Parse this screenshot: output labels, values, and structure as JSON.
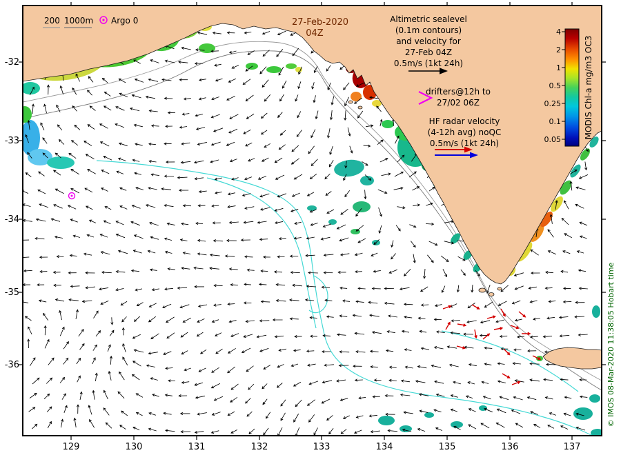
{
  "header": {
    "date_line1": "27-Feb-2020",
    "date_line2": "04Z"
  },
  "legend": {
    "isobaths": {
      "label_200": "200",
      "label_1000": "1000m"
    },
    "argo": {
      "label": "Argo 0"
    }
  },
  "annotations": {
    "altimetric": [
      "Altimetric sealevel",
      "(0.1m contours)",
      "and velocity for",
      "27-Feb 04Z",
      "0.5m/s (1kt 24h)"
    ],
    "drifters": [
      "drifters@12h to",
      "27/02 06Z"
    ],
    "hf_radar": [
      "HF radar velocity",
      "(4-12h avg) noQC",
      "0.5m/s (1kt 24h)"
    ]
  },
  "colorbar": {
    "title": "MODIS Chl-a mg/m3 OC3",
    "ticks": [
      "4",
      "2",
      "1",
      "0.5",
      "0.25",
      "0.1",
      "0.05"
    ]
  },
  "axes": {
    "x_ticks": [
      "129",
      "130",
      "131",
      "132",
      "133",
      "134",
      "135",
      "136",
      "137"
    ],
    "y_ticks": [
      "-32",
      "-33",
      "-34",
      "-35",
      "-36"
    ]
  },
  "credit": "© IMOS 08-Mar-2020 11:38:05 Hobart time",
  "colors": {
    "land": "#f4c8a0",
    "ocean": "#ffffff",
    "coastline": "#1a1a1a",
    "date_text": "#702800",
    "contour_cyan": "#45d9d5",
    "isobath_200": "#9a9a9a",
    "isobath_1000": "#7a7a7a",
    "arrow": "#000000",
    "hf_arrow_red": "#d40000",
    "drifter_magenta": "#f000f0",
    "velocity_blue": "#0000dd",
    "credit_green": "#006400"
  }
}
